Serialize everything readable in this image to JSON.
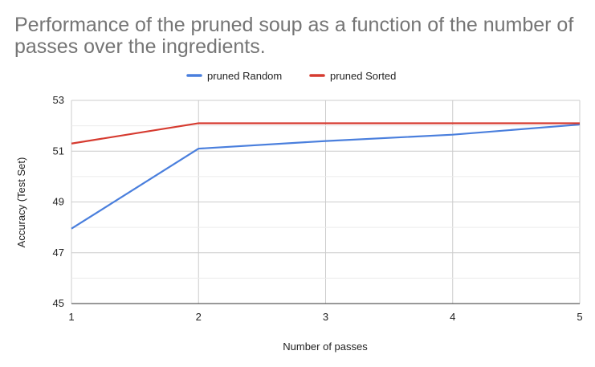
{
  "chart_data": {
    "type": "line",
    "title": "Performance of the pruned soup as a function of the number of passes over the ingredients.",
    "xlabel": "Number of passes",
    "ylabel": "Accuracy (Test Set)",
    "x": [
      1,
      2,
      3,
      4,
      5
    ],
    "xticks": [
      "1",
      "2",
      "3",
      "4",
      "5"
    ],
    "ylim": [
      45,
      53
    ],
    "yticks": [
      "45",
      "47",
      "49",
      "51",
      "53"
    ],
    "grid": true,
    "legend_position": "top",
    "series": [
      {
        "name": "pruned Random",
        "color": "#4a7fdd",
        "values": [
          47.95,
          51.1,
          51.4,
          51.65,
          52.05
        ]
      },
      {
        "name": "pruned Sorted",
        "color": "#d63b30",
        "values": [
          51.3,
          52.1,
          52.1,
          52.1,
          52.1
        ]
      }
    ]
  }
}
